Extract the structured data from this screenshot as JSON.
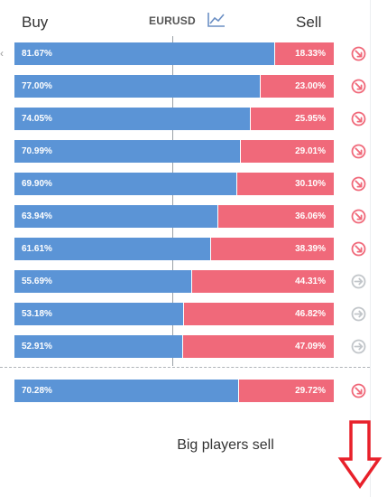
{
  "header": {
    "buy_label": "Buy",
    "pair": "EURUSD",
    "sell_label": "Sell"
  },
  "rows": [
    {
      "buy": "81.67%",
      "sell": "18.33%",
      "buy_pct": 81.67,
      "trend": "down"
    },
    {
      "buy": "77.00%",
      "sell": "23.00%",
      "buy_pct": 77.0,
      "trend": "down"
    },
    {
      "buy": "74.05%",
      "sell": "25.95%",
      "buy_pct": 74.05,
      "trend": "down"
    },
    {
      "buy": "70.99%",
      "sell": "29.01%",
      "buy_pct": 70.99,
      "trend": "down"
    },
    {
      "buy": "69.90%",
      "sell": "30.10%",
      "buy_pct": 69.9,
      "trend": "down"
    },
    {
      "buy": "63.94%",
      "sell": "36.06%",
      "buy_pct": 63.94,
      "trend": "down"
    },
    {
      "buy": "61.61%",
      "sell": "38.39%",
      "buy_pct": 61.61,
      "trend": "down"
    },
    {
      "buy": "55.69%",
      "sell": "44.31%",
      "buy_pct": 55.69,
      "trend": "neutral"
    },
    {
      "buy": "53.18%",
      "sell": "46.82%",
      "buy_pct": 53.18,
      "trend": "neutral"
    },
    {
      "buy": "52.91%",
      "sell": "47.09%",
      "buy_pct": 52.91,
      "trend": "neutral"
    }
  ],
  "total": {
    "buy": "70.28%",
    "sell": "29.72%",
    "buy_pct": 70.28,
    "trend": "down"
  },
  "verdict": "Big players sell",
  "colors": {
    "buy": "#5b94d6",
    "sell": "#f0697a",
    "trend_down": "#f0697a",
    "trend_neutral": "#c2c6ca",
    "annotation_arrow": "#e8202a"
  },
  "icons": {
    "chart": "chart-line-icon",
    "trend_down": "arrow-down-right-circle-icon",
    "trend_neutral": "arrow-right-circle-icon",
    "annotation": "down-arrow-icon"
  }
}
